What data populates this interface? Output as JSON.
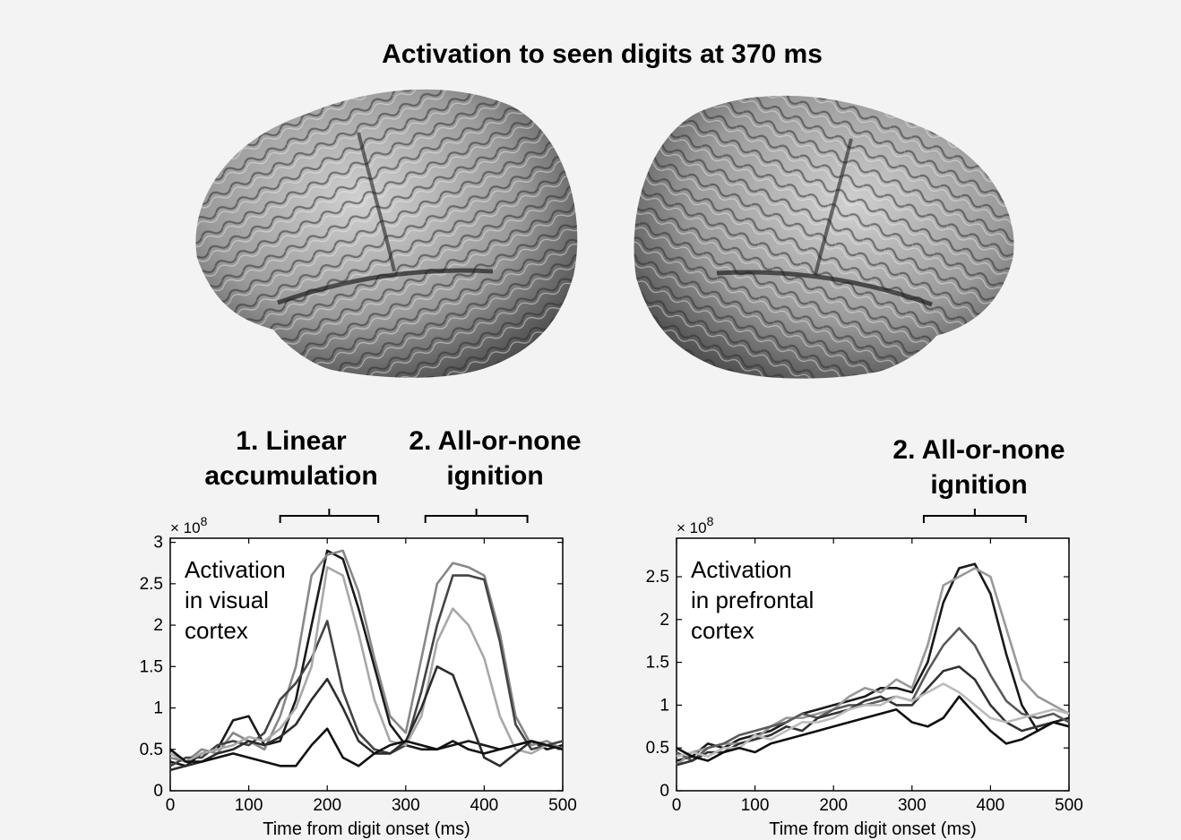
{
  "figure": {
    "title": "Activation to seen digits at 370 ms",
    "colors": {
      "background": "#f3f3f3",
      "cortex_light": "#c9c9c9",
      "cortex_dark": "#3a3a3a"
    },
    "annotations": [
      {
        "text": "1. Linear\naccumulation",
        "panel": 0,
        "bracket": [
          140,
          265
        ]
      },
      {
        "text": "2. All-or-none\nignition",
        "panel": 0,
        "bracket": [
          325,
          455
        ]
      },
      {
        "text": "2. All-or-none\nignition",
        "panel": 1,
        "bracket": [
          315,
          445
        ]
      }
    ]
  },
  "chart_data": [
    {
      "type": "line",
      "title": "",
      "inset_label": [
        "Activation",
        "in visual",
        "cortex"
      ],
      "xlabel": "Time from digit onset (ms)",
      "ylabel": "",
      "y_multiplier": "× 10",
      "y_multiplier_exp": "8",
      "xlim": [
        0,
        500
      ],
      "ylim": [
        0,
        3.05
      ],
      "xticks": [
        0,
        100,
        200,
        300,
        400,
        500
      ],
      "yticks": [
        0,
        0.5,
        1,
        1.5,
        2,
        2.5,
        3
      ],
      "ytick_labels": [
        "0",
        "0.5",
        "1",
        "1.5",
        "2",
        "2.5",
        "3"
      ],
      "x": [
        0,
        20,
        40,
        60,
        80,
        100,
        120,
        140,
        160,
        180,
        200,
        220,
        240,
        260,
        280,
        300,
        320,
        340,
        360,
        380,
        400,
        420,
        440,
        460,
        480,
        500
      ],
      "series": [
        {
          "color": "#1a1a1a",
          "values": [
            0.35,
            0.3,
            0.45,
            0.5,
            0.85,
            0.9,
            0.55,
            0.6,
            1.1,
            2.0,
            2.9,
            2.8,
            2.2,
            1.5,
            0.8,
            0.55,
            0.5,
            0.5,
            0.55,
            0.6,
            0.55,
            0.5,
            0.55,
            0.6,
            0.5,
            0.55
          ]
        },
        {
          "color": "#888888",
          "values": [
            0.4,
            0.35,
            0.5,
            0.45,
            0.7,
            0.6,
            0.5,
            0.9,
            1.5,
            2.6,
            2.85,
            2.9,
            2.4,
            1.6,
            0.9,
            0.7,
            1.6,
            2.5,
            2.75,
            2.7,
            2.6,
            1.9,
            0.9,
            0.55,
            0.6,
            0.5
          ]
        },
        {
          "color": "#444444",
          "values": [
            0.3,
            0.4,
            0.4,
            0.55,
            0.6,
            0.55,
            0.7,
            1.1,
            1.3,
            1.6,
            2.05,
            1.2,
            0.7,
            0.5,
            0.45,
            0.55,
            1.2,
            2.0,
            2.6,
            2.6,
            2.55,
            1.8,
            0.8,
            0.5,
            0.55,
            0.6
          ]
        },
        {
          "color": "#a8a8a8",
          "values": [
            0.45,
            0.35,
            0.45,
            0.5,
            0.55,
            0.65,
            0.6,
            0.75,
            1.0,
            1.5,
            2.7,
            2.6,
            1.9,
            1.1,
            0.6,
            0.55,
            0.9,
            1.8,
            2.2,
            2.0,
            1.6,
            0.9,
            0.5,
            0.45,
            0.55,
            0.5
          ]
        },
        {
          "color": "#2c2c2c",
          "values": [
            0.25,
            0.3,
            0.35,
            0.45,
            0.5,
            0.6,
            0.55,
            0.65,
            0.8,
            1.1,
            1.35,
            1.0,
            0.6,
            0.45,
            0.45,
            0.6,
            1.0,
            1.5,
            1.4,
            0.9,
            0.4,
            0.3,
            0.45,
            0.6,
            0.55,
            0.5
          ]
        },
        {
          "color": "#111111",
          "values": [
            0.5,
            0.35,
            0.35,
            0.4,
            0.45,
            0.4,
            0.35,
            0.3,
            0.3,
            0.55,
            0.75,
            0.4,
            0.3,
            0.45,
            0.55,
            0.6,
            0.55,
            0.5,
            0.6,
            0.5,
            0.45,
            0.5,
            0.55,
            0.6,
            0.55,
            0.5
          ]
        }
      ]
    },
    {
      "type": "line",
      "title": "",
      "inset_label": [
        "Activation",
        "in prefrontal",
        "cortex"
      ],
      "xlabel": "Time from digit onset (ms)",
      "ylabel": "",
      "y_multiplier": "× 10",
      "y_multiplier_exp": "8",
      "xlim": [
        0,
        500
      ],
      "ylim": [
        0,
        2.95
      ],
      "xticks": [
        0,
        100,
        200,
        300,
        400,
        500
      ],
      "yticks": [
        0,
        0.5,
        1,
        1.5,
        2,
        2.5
      ],
      "ytick_labels": [
        "0",
        "0.5",
        "1",
        "1.5",
        "2",
        "2.5"
      ],
      "x": [
        0,
        20,
        40,
        60,
        80,
        100,
        120,
        140,
        160,
        180,
        200,
        220,
        240,
        260,
        280,
        300,
        320,
        340,
        360,
        380,
        400,
        420,
        440,
        460,
        480,
        500
      ],
      "series": [
        {
          "color": "#1a1a1a",
          "values": [
            0.35,
            0.4,
            0.55,
            0.5,
            0.6,
            0.65,
            0.7,
            0.8,
            0.9,
            0.95,
            1.0,
            1.05,
            1.1,
            1.2,
            1.2,
            1.15,
            1.5,
            2.2,
            2.6,
            2.65,
            2.3,
            1.6,
            1.0,
            0.7,
            0.8,
            0.85
          ]
        },
        {
          "color": "#999999",
          "values": [
            0.3,
            0.45,
            0.5,
            0.55,
            0.55,
            0.6,
            0.75,
            0.85,
            0.85,
            0.9,
            0.95,
            1.1,
            1.2,
            1.15,
            1.3,
            1.2,
            1.7,
            2.4,
            2.5,
            2.6,
            2.5,
            1.9,
            1.3,
            1.1,
            1.0,
            0.9
          ]
        },
        {
          "color": "#5a5a5a",
          "values": [
            0.45,
            0.35,
            0.5,
            0.55,
            0.65,
            0.7,
            0.75,
            0.8,
            0.9,
            0.85,
            0.95,
            1.0,
            1.0,
            1.05,
            1.1,
            1.05,
            1.4,
            1.7,
            1.9,
            1.7,
            1.35,
            1.05,
            0.9,
            0.85,
            0.9,
            0.8
          ]
        },
        {
          "color": "#333333",
          "values": [
            0.3,
            0.35,
            0.45,
            0.45,
            0.55,
            0.6,
            0.65,
            0.75,
            0.7,
            0.85,
            0.9,
            0.95,
            1.05,
            1.1,
            1.0,
            1.0,
            1.2,
            1.4,
            1.45,
            1.3,
            1.0,
            0.8,
            0.7,
            0.75,
            0.8,
            0.75
          ]
        },
        {
          "color": "#bbbbbb",
          "values": [
            0.4,
            0.45,
            0.4,
            0.5,
            0.5,
            0.65,
            0.6,
            0.7,
            0.8,
            0.8,
            0.85,
            0.95,
            1.0,
            1.0,
            1.1,
            1.05,
            1.15,
            1.25,
            1.15,
            1.0,
            0.85,
            0.8,
            0.85,
            0.9,
            0.95,
            0.9
          ]
        },
        {
          "color": "#0f0f0f",
          "values": [
            0.5,
            0.4,
            0.35,
            0.45,
            0.5,
            0.45,
            0.55,
            0.6,
            0.65,
            0.7,
            0.75,
            0.8,
            0.85,
            0.9,
            0.95,
            0.8,
            0.75,
            0.85,
            1.1,
            0.9,
            0.7,
            0.55,
            0.6,
            0.7,
            0.8,
            0.75
          ]
        }
      ]
    }
  ]
}
